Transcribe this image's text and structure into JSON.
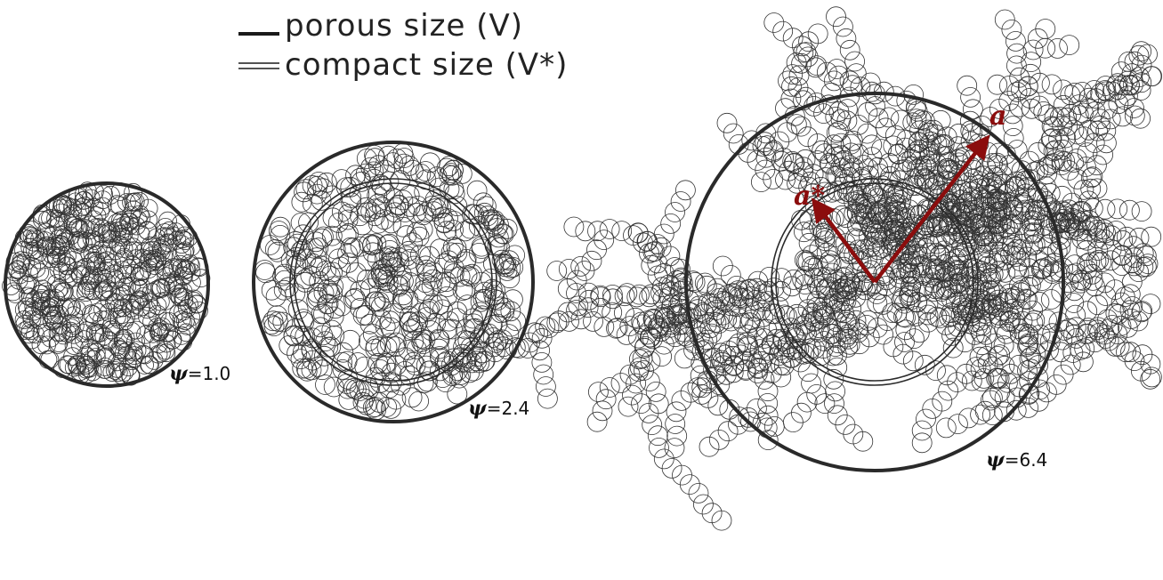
{
  "legend": {
    "porous_label": "porous size (V)",
    "compact_label": "compact size (V*)"
  },
  "aggregates": [
    {
      "psi_symbol": "ψ",
      "psi_value": "=1.0"
    },
    {
      "psi_symbol": "ψ",
      "psi_value": "=2.4"
    },
    {
      "psi_symbol": "ψ",
      "psi_value": "=6.4"
    }
  ],
  "vectors": {
    "porous_radius_label": "a",
    "compact_radius_label": "a*"
  },
  "colors": {
    "monomer_outline": "#333333",
    "porous_circle": "#2a2a2a",
    "compact_circle": "#2a2a2a",
    "radius_arrow": "#8b0d0d"
  }
}
